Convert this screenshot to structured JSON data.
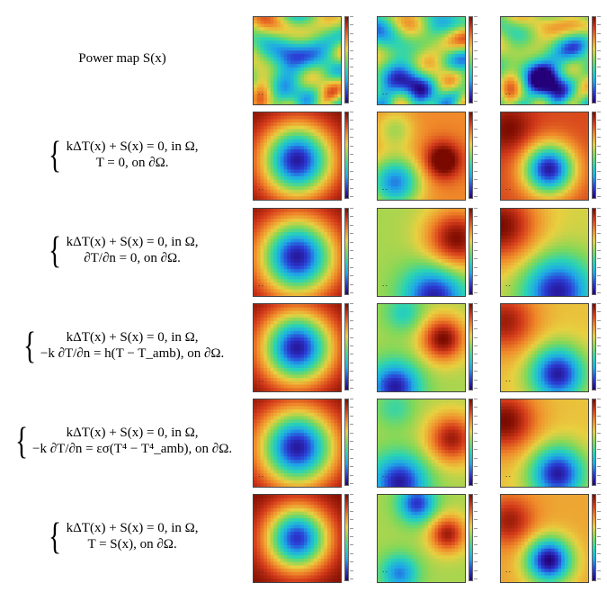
{
  "rows": [
    {
      "label": "Power map S(x)",
      "kind": "title"
    },
    {
      "kind": "equation",
      "line1": "kΔT(x) + S(x) = 0,   in Ω,",
      "line2": "T = 0,   on ∂Ω."
    },
    {
      "kind": "equation",
      "line1": "kΔT(x) + S(x) = 0,   in Ω,",
      "line2": "∂T/∂n = 0,   on ∂Ω."
    },
    {
      "kind": "equation",
      "line1": "kΔT(x) + S(x) = 0,   in Ω,",
      "line2": "−k ∂T/∂n = h(T − T_amb),   on ∂Ω."
    },
    {
      "kind": "equation",
      "line1": "kΔT(x) + S(x) = 0,   in Ω,",
      "line2": "−k ∂T/∂n = εσ(T⁴ − T⁴_amb),  on ∂Ω."
    },
    {
      "kind": "equation",
      "line1": "kΔT(x) + S(x) = 0,   in Ω,",
      "line2": "T = S(x),   on ∂Ω."
    }
  ],
  "colormap": [
    "#24007a",
    "#2b3fd6",
    "#1fa8e8",
    "#2ad4b4",
    "#7fd85a",
    "#e8d040",
    "#f08a2a",
    "#d33a1a",
    "#7a0a00"
  ]
}
